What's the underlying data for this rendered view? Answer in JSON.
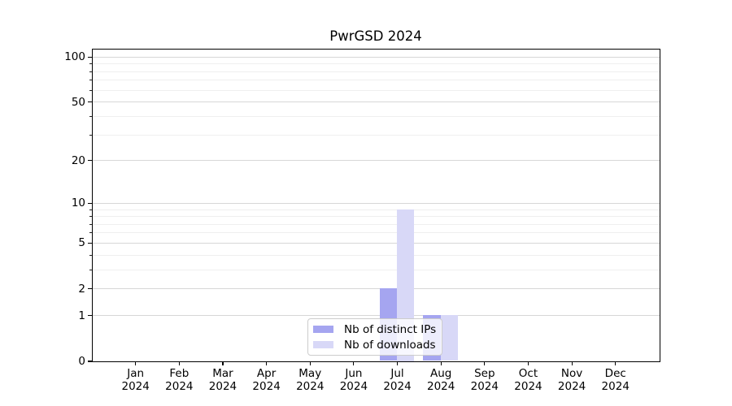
{
  "chart_data": {
    "type": "bar",
    "title": "PwrGSD 2024",
    "categories": [
      "Jan",
      "Feb",
      "Mar",
      "Apr",
      "May",
      "Jun",
      "Jul",
      "Aug",
      "Sep",
      "Oct",
      "Nov",
      "Dec"
    ],
    "x_tick_year": "2024",
    "series": [
      {
        "name": "Nb of distinct IPs",
        "color": "#a5a5f0",
        "values": [
          0,
          0,
          0,
          0,
          0,
          0,
          2,
          1,
          0,
          0,
          0,
          0
        ]
      },
      {
        "name": "Nb of downloads",
        "color": "#d8d8f7",
        "values": [
          0,
          0,
          0,
          0,
          0,
          0,
          9,
          1,
          0,
          0,
          0,
          0
        ]
      }
    ],
    "xlabel": "",
    "ylabel": "",
    "y_scale": "log1p",
    "y_ticks_major": [
      0,
      1,
      2,
      5,
      10,
      20,
      50,
      100
    ],
    "y_ticks_minor": [
      3,
      4,
      6,
      7,
      8,
      9,
      30,
      40,
      60,
      70,
      80,
      90
    ],
    "ylim": [
      0,
      115
    ],
    "grid": "horizontal-only",
    "legend_position": "lower-center",
    "colors": {
      "grid_major": "#d7d7d7",
      "grid_minor": "#efefef",
      "axis": "#000000",
      "background": "#ffffff"
    }
  }
}
